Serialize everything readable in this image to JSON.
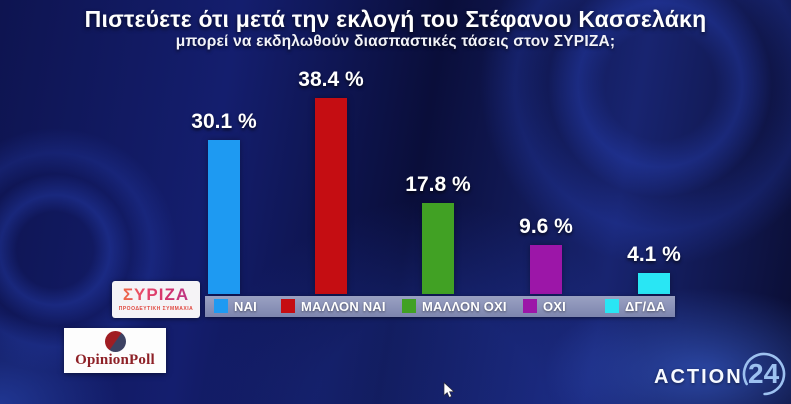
{
  "header": {
    "title": "Πιστεύετε ότι μετά την εκλογή του Στέφανου Κασσελάκη",
    "subtitle": "μπορεί να εκδηλωθούν διασπαστικές τάσεις στον ΣΥΡΙΖΑ;"
  },
  "chart_data": {
    "type": "bar",
    "title": "Πιστεύετε ότι μετά την εκλογή του Στέφανου Κασσελάκη μπορεί να εκδηλωθούν διασπαστικές τάσεις στον ΣΥΡΙΖΑ;",
    "categories": [
      "ΝΑΙ",
      "ΜΑΛΛΟΝ ΝΑΙ",
      "ΜΑΛΛΟΝ ΟΧΙ",
      "ΟΧΙ",
      "ΔΓ/ΔΑ"
    ],
    "values": [
      30.1,
      38.4,
      17.8,
      9.6,
      4.1
    ],
    "value_labels": [
      "30.1 %",
      "38.4 %",
      "17.8 %",
      "9.6 %",
      "4.1 %"
    ],
    "bar_colors": [
      "#1e9af2",
      "#c50d12",
      "#41a124",
      "#9c16a8",
      "#29e6f4"
    ],
    "ylim": [
      0,
      40
    ],
    "grid": false,
    "legend_position": "bottom",
    "legend_bg": "#828ab2",
    "background_color": "#0e1450",
    "value_label_color": "#ffffff"
  },
  "logos": {
    "syriza": {
      "name": "ΣΥΡΙΖΑ",
      "subtext": "ΠΡΟΟΔΕΥΤΙΚΗ ΣΥΜΜΑΧΙΑ"
    },
    "opinionpoll": {
      "name": "OpinionPoll"
    },
    "action24": {
      "word": "ACTION",
      "number": "24"
    }
  }
}
